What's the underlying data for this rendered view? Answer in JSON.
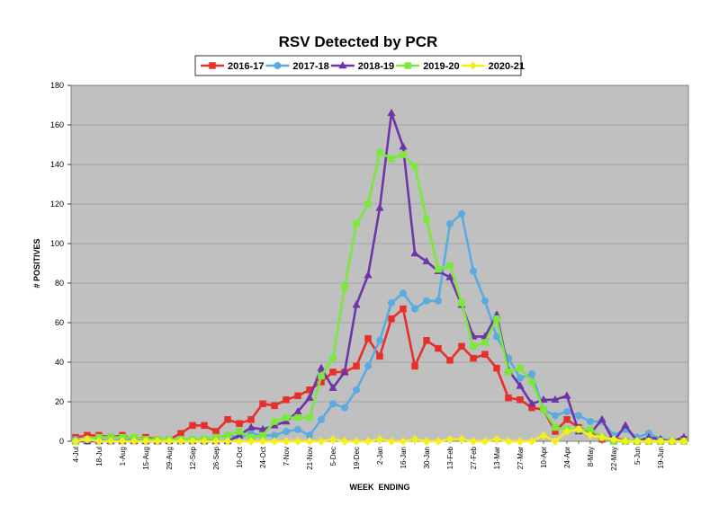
{
  "chart_data": {
    "type": "line",
    "title": "RSV Detected by PCR",
    "xlabel": "WEEK  ENDING",
    "ylabel": "# POSITIVES",
    "ylim": [
      0,
      180
    ],
    "yticks": [
      0,
      20,
      40,
      60,
      80,
      100,
      120,
      140,
      160,
      180
    ],
    "grid": true,
    "legend_position": "top",
    "x_tick_labels": [
      "4-Jul",
      "18-Jul",
      "1-Aug",
      "15-Aug",
      "29-Aug",
      "12-Sep",
      "26-Sep",
      "10-Oct",
      "24-Oct",
      "7-Nov",
      "21-Nov",
      "5-Dec",
      "19-Dec",
      "2-Jan",
      "16-Jan",
      "30-Jan",
      "13-Feb",
      "27-Feb",
      "13-Mar",
      "27-Mar",
      "10-Apr",
      "24-Apr",
      "8-May",
      "22-May",
      "5-Jun",
      "19-Jun"
    ],
    "n_weeks": 53,
    "series": [
      {
        "name": "2016-17",
        "color": "#e8302a",
        "marker": "square",
        "values": [
          2,
          3,
          3,
          2,
          3,
          1,
          2,
          1,
          1,
          4,
          8,
          8,
          5,
          11,
          9,
          11,
          19,
          18,
          21,
          23,
          26,
          30,
          35,
          35,
          38,
          52,
          43,
          62,
          67,
          38,
          51,
          47,
          41,
          48,
          42,
          44,
          37,
          22,
          21,
          17,
          16,
          5,
          11,
          7,
          5,
          1,
          2,
          0,
          0,
          0,
          0,
          0,
          1
        ]
      },
      {
        "name": "2017-18",
        "color": "#5aace0",
        "marker": "circle",
        "values": [
          1,
          0,
          1,
          0,
          1,
          1,
          0,
          0,
          0,
          1,
          1,
          0,
          2,
          3,
          2,
          4,
          3,
          3,
          5,
          6,
          3,
          11,
          19,
          17,
          26,
          38,
          51,
          70,
          75,
          67,
          71,
          71,
          110,
          115,
          86,
          71,
          53,
          42,
          32,
          34,
          16,
          13,
          15,
          13,
          10,
          10,
          3,
          6,
          2,
          4,
          1,
          0,
          0
        ]
      },
      {
        "name": "2018-19",
        "color": "#6d35a8",
        "marker": "triangle",
        "values": [
          0,
          0,
          0,
          0,
          0,
          0,
          0,
          0,
          0,
          0,
          0,
          0,
          0,
          0,
          3,
          7,
          6,
          8,
          10,
          15,
          22,
          37,
          27,
          35,
          69,
          84,
          118,
          166,
          149,
          95,
          91,
          86,
          83,
          69,
          53,
          53,
          64,
          36,
          28,
          19,
          21,
          21,
          23,
          5,
          4,
          11,
          0,
          8,
          0,
          2,
          1,
          0,
          2
        ]
      },
      {
        "name": "2019-20",
        "color": "#7de83c",
        "marker": "square",
        "values": [
          0,
          1,
          2,
          2,
          2,
          2,
          1,
          1,
          1,
          1,
          1,
          1,
          2,
          3,
          5,
          2,
          3,
          10,
          12,
          12,
          12,
          33,
          42,
          78,
          110,
          120,
          146,
          143,
          145,
          139,
          112,
          87,
          89,
          70,
          48,
          50,
          62,
          35,
          37,
          30,
          16,
          7,
          6,
          6,
          6,
          2,
          0,
          0,
          0,
          0,
          0,
          0,
          0
        ]
      },
      {
        "name": "2020-21",
        "color": "#f5ef1e",
        "marker": "diamond",
        "values": [
          0,
          1,
          0,
          0,
          0,
          0,
          0,
          0,
          0,
          0,
          0,
          0,
          0,
          0,
          0,
          0,
          0,
          0,
          0,
          0,
          0,
          0,
          1,
          0,
          0,
          0,
          1,
          0,
          0,
          1,
          0,
          0,
          1,
          1,
          0,
          0,
          1,
          0,
          0,
          0,
          3,
          0,
          5,
          6,
          3,
          2,
          1,
          0,
          0,
          0,
          0,
          0,
          0
        ]
      }
    ]
  }
}
